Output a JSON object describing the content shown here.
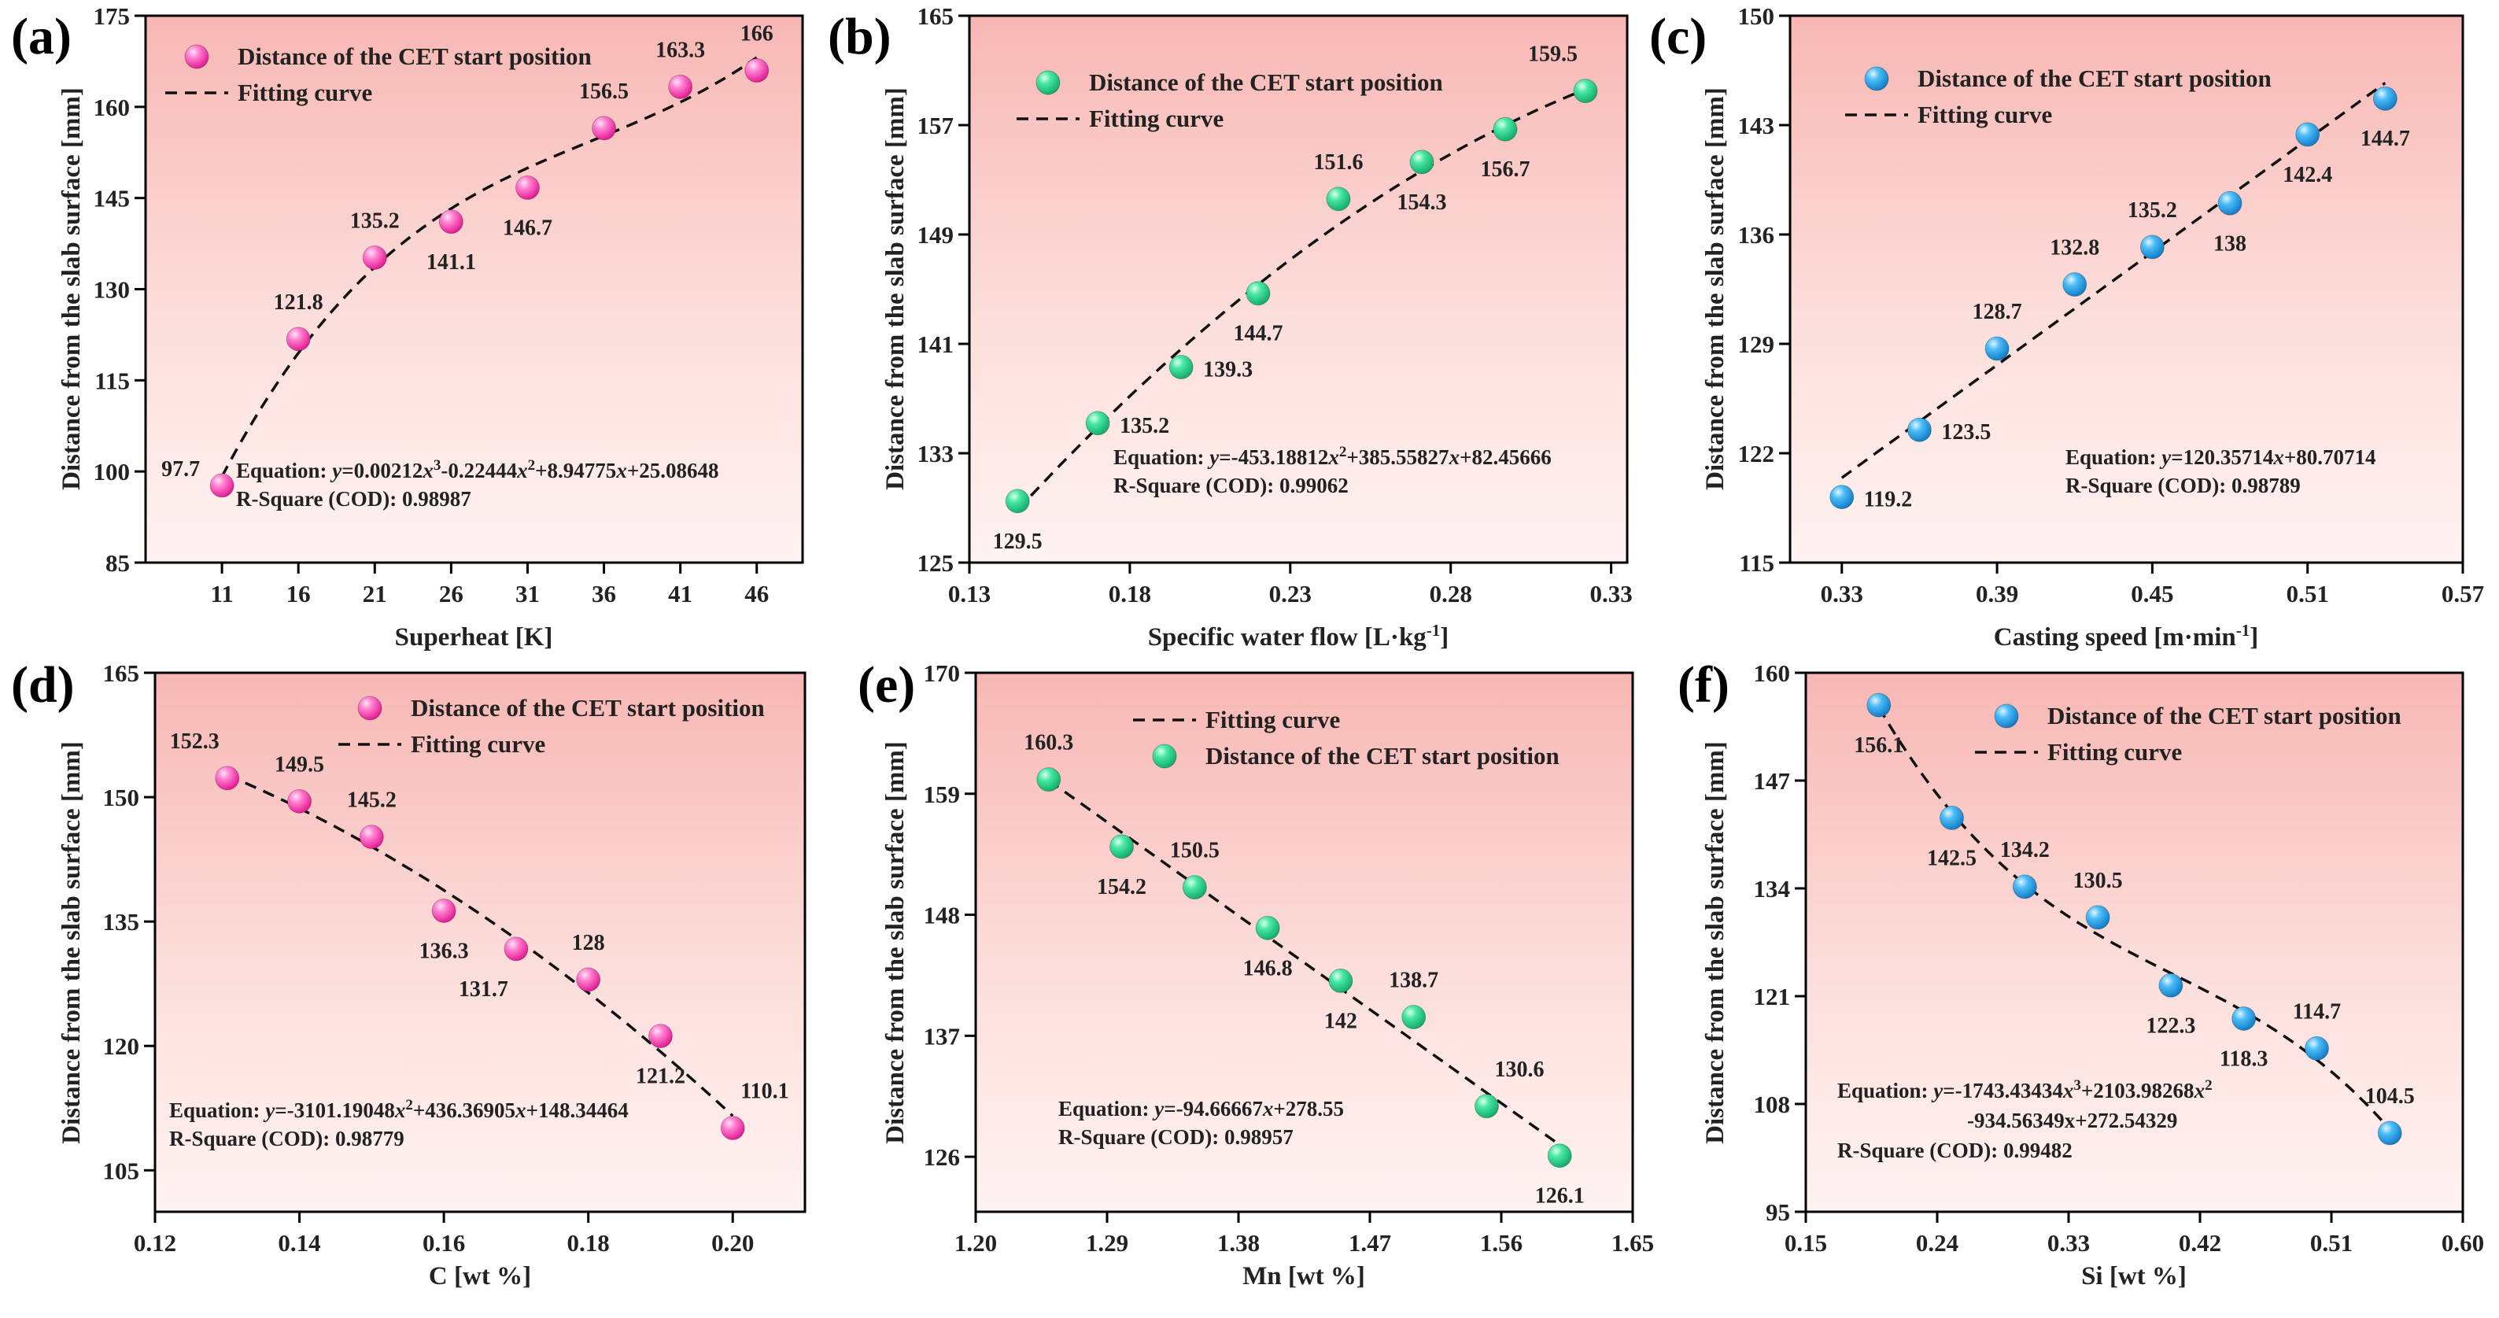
{
  "figure": {
    "ylabel": "Distance from the slab surface [mm]"
  },
  "chart_data": [
    {
      "panel": "(a)",
      "type": "scatter",
      "xlabel": "Superheat [K]",
      "ylabel": "Distance from the slab surface [mm]",
      "xlim": [
        6,
        49
      ],
      "ylim": [
        85,
        175
      ],
      "xticks": [
        11,
        16,
        21,
        26,
        31,
        36,
        41,
        46
      ],
      "xtick_labels": [
        "11",
        "16",
        "21",
        "26",
        "31",
        "36",
        "41",
        "46"
      ],
      "yticks": [
        85,
        100,
        115,
        130,
        145,
        160,
        175
      ],
      "ytick_labels": [
        "85",
        "100",
        "115",
        "130",
        "145",
        "160",
        "175"
      ],
      "marker_color": "#ff3fb4",
      "legend": [
        {
          "kind": "marker",
          "label": "Distance of the CET start position"
        },
        {
          "kind": "line",
          "label": "Fitting curve"
        }
      ],
      "fit": {
        "model": "poly",
        "coef": [
          25.08648,
          8.94775,
          -0.22444,
          0.00212
        ],
        "x_range": [
          11,
          46
        ]
      },
      "points": [
        {
          "x": 11,
          "y": 97.7,
          "label": "97.7",
          "pos": "left"
        },
        {
          "x": 16,
          "y": 121.8,
          "label": "121.8",
          "pos": "above"
        },
        {
          "x": 21,
          "y": 135.2,
          "label": "135.2",
          "pos": "above"
        },
        {
          "x": 26,
          "y": 141.1,
          "label": "141.1",
          "pos": "below"
        },
        {
          "x": 31,
          "y": 146.7,
          "label": "146.7",
          "pos": "below"
        },
        {
          "x": 36,
          "y": 156.5,
          "label": "156.5",
          "pos": "above"
        },
        {
          "x": 41,
          "y": 163.3,
          "label": "163.3",
          "pos": "above"
        },
        {
          "x": 46,
          "y": 166,
          "label": "166",
          "pos": "above"
        }
      ],
      "equation": {
        "line1": {
          "prefix": "Equation: ",
          "parts": [
            [
              "y",
              true,
              false
            ],
            [
              "=0.00212",
              false,
              false
            ],
            [
              "x",
              true,
              false
            ],
            [
              "3",
              false,
              true
            ],
            [
              "-0.22444",
              false,
              false
            ],
            [
              "x",
              true,
              false
            ],
            [
              "2",
              false,
              true
            ],
            [
              "+8.94775",
              false,
              false
            ],
            [
              "x",
              true,
              false
            ],
            [
              "+25.08648",
              false,
              false
            ]
          ]
        },
        "r_square": "R-Square (COD): 0.98987"
      }
    },
    {
      "panel": "(b)",
      "type": "scatter",
      "xlabel": "Specific water flow [L·kg",
      "xlabel_sup": "-1",
      "xlabel_end": "]",
      "ylabel": "Distance from the slab surface [mm]",
      "xlim": [
        0.13,
        0.335
      ],
      "ylim": [
        125,
        165
      ],
      "xticks": [
        0.13,
        0.18,
        0.23,
        0.28,
        0.33
      ],
      "xtick_labels": [
        "0.13",
        "0.18",
        "0.23",
        "0.28",
        "0.33"
      ],
      "yticks": [
        125,
        133,
        141,
        149,
        157,
        165
      ],
      "ytick_labels": [
        "125",
        "133",
        "141",
        "149",
        "157",
        "165"
      ],
      "marker_color": "#1fd88a",
      "legend": [
        {
          "kind": "marker",
          "label": "Distance of the CET start position"
        },
        {
          "kind": "line",
          "label": "Fitting curve"
        }
      ],
      "fit": {
        "model": "poly",
        "coef": [
          82.45666,
          385.55827,
          -453.18812
        ],
        "x_range": [
          0.145,
          0.322
        ]
      },
      "points": [
        {
          "x": 0.145,
          "y": 129.5,
          "label": "129.5",
          "pos": "below"
        },
        {
          "x": 0.17,
          "y": 135.2,
          "label": "135.2",
          "pos": "right"
        },
        {
          "x": 0.196,
          "y": 139.3,
          "label": "139.3",
          "pos": "right"
        },
        {
          "x": 0.22,
          "y": 144.7,
          "label": "144.7",
          "pos": "below"
        },
        {
          "x": 0.245,
          "y": 151.6,
          "label": "151.6",
          "pos": "above"
        },
        {
          "x": 0.271,
          "y": 154.3,
          "label": "154.3",
          "pos": "below"
        },
        {
          "x": 0.297,
          "y": 156.7,
          "label": "156.7",
          "pos": "below"
        },
        {
          "x": 0.322,
          "y": 159.5,
          "label": "159.5",
          "pos": "aboveleft"
        }
      ],
      "equation": {
        "line1": {
          "prefix": "Equation: ",
          "parts": [
            [
              "y",
              true,
              false
            ],
            [
              "=-453.18812",
              false,
              false
            ],
            [
              "x",
              true,
              false
            ],
            [
              "2",
              false,
              true
            ],
            [
              "+385.55827",
              false,
              false
            ],
            [
              "x",
              true,
              false
            ],
            [
              "+82.45666",
              false,
              false
            ]
          ]
        },
        "r_square": "R-Square (COD): 0.99062"
      }
    },
    {
      "panel": "(c)",
      "type": "scatter",
      "xlabel": "Casting speed [m·min",
      "xlabel_sup": "-1",
      "xlabel_end": "]",
      "ylabel": "Distance from the slab surface [mm]",
      "xlim": [
        0.31,
        0.57
      ],
      "ylim": [
        115,
        150
      ],
      "xticks": [
        0.33,
        0.39,
        0.45,
        0.51,
        0.57
      ],
      "xtick_labels": [
        "0.33",
        "0.39",
        "0.45",
        "0.51",
        "0.57"
      ],
      "yticks": [
        115,
        122,
        129,
        136,
        143,
        150
      ],
      "ytick_labels": [
        "115",
        "122",
        "129",
        "136",
        "143",
        "150"
      ],
      "marker_color": "#1fa3f0",
      "legend": [
        {
          "kind": "marker",
          "label": "Distance of the CET start position"
        },
        {
          "kind": "line",
          "label": "Fitting curve"
        }
      ],
      "fit": {
        "model": "poly",
        "coef": [
          80.70714,
          120.35714
        ],
        "x_range": [
          0.33,
          0.54
        ]
      },
      "points": [
        {
          "x": 0.33,
          "y": 119.2,
          "label": "119.2",
          "pos": "right"
        },
        {
          "x": 0.36,
          "y": 123.5,
          "label": "123.5",
          "pos": "right"
        },
        {
          "x": 0.39,
          "y": 128.7,
          "label": "128.7",
          "pos": "above"
        },
        {
          "x": 0.42,
          "y": 132.8,
          "label": "132.8",
          "pos": "above"
        },
        {
          "x": 0.45,
          "y": 135.2,
          "label": "135.2",
          "pos": "above"
        },
        {
          "x": 0.48,
          "y": 138,
          "label": "138",
          "pos": "below"
        },
        {
          "x": 0.51,
          "y": 142.4,
          "label": "142.4",
          "pos": "below"
        },
        {
          "x": 0.54,
          "y": 144.7,
          "label": "144.7",
          "pos": "below"
        }
      ],
      "equation": {
        "line1": {
          "prefix": "Equation: ",
          "parts": [
            [
              "y",
              true,
              false
            ],
            [
              "=120.35714",
              false,
              false
            ],
            [
              "x",
              true,
              false
            ],
            [
              "+80.70714",
              false,
              false
            ]
          ]
        },
        "r_square": "R-Square (COD): 0.98789"
      }
    },
    {
      "panel": "(d)",
      "type": "scatter",
      "xlabel": "C [wt %]",
      "ylabel": "Distance from the slab surface [mm]",
      "xlim": [
        0.12,
        0.21
      ],
      "ylim": [
        100,
        165
      ],
      "xticks": [
        0.12,
        0.14,
        0.16,
        0.18,
        0.2
      ],
      "xtick_labels": [
        "0.12",
        "0.14",
        "0.16",
        "0.18",
        "0.20"
      ],
      "yticks": [
        105,
        120,
        135,
        150,
        165
      ],
      "ytick_labels": [
        "105",
        "120",
        "135",
        "150",
        "165"
      ],
      "marker_color": "#ff3fb4",
      "legend": [
        {
          "kind": "marker",
          "label": "Distance of the CET start position"
        },
        {
          "kind": "line",
          "label": "Fitting curve"
        }
      ],
      "fit": {
        "model": "poly",
        "coef": [
          148.34464,
          436.36905,
          -3101.19048
        ],
        "x_range": [
          0.13,
          0.2
        ]
      },
      "points": [
        {
          "x": 0.13,
          "y": 152.3,
          "label": "152.3",
          "pos": "aboveleft"
        },
        {
          "x": 0.14,
          "y": 149.5,
          "label": "149.5",
          "pos": "above"
        },
        {
          "x": 0.15,
          "y": 145.2,
          "label": "145.2",
          "pos": "above"
        },
        {
          "x": 0.16,
          "y": 136.3,
          "label": "136.3",
          "pos": "below"
        },
        {
          "x": 0.17,
          "y": 131.7,
          "label": "131.7",
          "pos": "belowleft"
        },
        {
          "x": 0.18,
          "y": 128,
          "label": "128",
          "pos": "above"
        },
        {
          "x": 0.19,
          "y": 121.2,
          "label": "121.2",
          "pos": "below"
        },
        {
          "x": 0.2,
          "y": 110.1,
          "label": "110.1",
          "pos": "aboveright"
        }
      ],
      "equation": {
        "line1": {
          "prefix": "Equation: ",
          "parts": [
            [
              "y",
              true,
              false
            ],
            [
              "=-3101.19048",
              false,
              false
            ],
            [
              "x",
              true,
              false
            ],
            [
              "2",
              false,
              true
            ],
            [
              "+436.36905",
              false,
              false
            ],
            [
              "x",
              true,
              false
            ],
            [
              "+148.34464",
              false,
              false
            ]
          ]
        },
        "r_square": "R-Square (COD): 0.98779"
      }
    },
    {
      "panel": "(e)",
      "type": "scatter",
      "xlabel": "Mn [wt %]",
      "ylabel": "Distance from the slab surface [mm]",
      "xlim": [
        1.2,
        1.65
      ],
      "ylim": [
        121,
        170
      ],
      "xticks": [
        1.2,
        1.29,
        1.38,
        1.47,
        1.56,
        1.65
      ],
      "xtick_labels": [
        "1.20",
        "1.29",
        "1.38",
        "1.47",
        "1.56",
        "1.65"
      ],
      "yticks": [
        126,
        137,
        148,
        159,
        170
      ],
      "ytick_labels": [
        "126",
        "137",
        "148",
        "159",
        "170"
      ],
      "marker_color": "#1fd88a",
      "legend": [
        {
          "kind": "line",
          "label": "Fitting curve"
        },
        {
          "kind": "marker",
          "label": "Distance of the CET start position"
        }
      ],
      "fit": {
        "model": "poly",
        "coef": [
          278.55,
          -94.66667
        ],
        "x_range": [
          1.25,
          1.6
        ]
      },
      "points": [
        {
          "x": 1.25,
          "y": 160.3,
          "label": "160.3",
          "pos": "above"
        },
        {
          "x": 1.3,
          "y": 154.2,
          "label": "154.2",
          "pos": "below"
        },
        {
          "x": 1.35,
          "y": 150.5,
          "label": "150.5",
          "pos": "above"
        },
        {
          "x": 1.4,
          "y": 146.8,
          "label": "146.8",
          "pos": "below"
        },
        {
          "x": 1.45,
          "y": 142,
          "label": "142",
          "pos": "below"
        },
        {
          "x": 1.5,
          "y": 138.7,
          "label": "138.7",
          "pos": "above"
        },
        {
          "x": 1.55,
          "y": 130.6,
          "label": "130.6",
          "pos": "aboveright"
        },
        {
          "x": 1.6,
          "y": 126.1,
          "label": "126.1",
          "pos": "below"
        }
      ],
      "equation": {
        "line1": {
          "prefix": "Equation: ",
          "parts": [
            [
              "y",
              true,
              false
            ],
            [
              "=-94.66667",
              false,
              false
            ],
            [
              "x",
              true,
              false
            ],
            [
              "+278.55",
              false,
              false
            ]
          ]
        },
        "r_square": "R-Square (COD): 0.98957"
      }
    },
    {
      "panel": "(f)",
      "type": "scatter",
      "xlabel": "Si [wt %]",
      "ylabel": "Distance from the slab surface [mm]",
      "xlim": [
        0.15,
        0.6
      ],
      "ylim": [
        95,
        160
      ],
      "xticks": [
        0.15,
        0.24,
        0.33,
        0.42,
        0.51,
        0.6
      ],
      "xtick_labels": [
        "0.15",
        "0.24",
        "0.33",
        "0.42",
        "0.51",
        "0.60"
      ],
      "yticks": [
        95,
        108,
        121,
        134,
        147,
        160
      ],
      "ytick_labels": [
        "95",
        "108",
        "121",
        "134",
        "147",
        "160"
      ],
      "marker_color": "#1fa3f0",
      "legend": [
        {
          "kind": "marker",
          "label": "Distance of the CET start position"
        },
        {
          "kind": "line",
          "label": "Fitting curve"
        }
      ],
      "fit": {
        "model": "poly",
        "coef": [
          272.54329,
          -934.56349,
          2103.98268,
          -1743.43434
        ],
        "x_range": [
          0.2,
          0.55
        ]
      },
      "points": [
        {
          "x": 0.2,
          "y": 156.1,
          "label": "156.1",
          "pos": "below"
        },
        {
          "x": 0.25,
          "y": 142.5,
          "label": "142.5",
          "pos": "below"
        },
        {
          "x": 0.3,
          "y": 134.2,
          "label": "134.2",
          "pos": "above"
        },
        {
          "x": 0.35,
          "y": 130.5,
          "label": "130.5",
          "pos": "above"
        },
        {
          "x": 0.4,
          "y": 122.3,
          "label": "122.3",
          "pos": "below"
        },
        {
          "x": 0.45,
          "y": 118.3,
          "label": "118.3",
          "pos": "below"
        },
        {
          "x": 0.5,
          "y": 114.7,
          "label": "114.7",
          "pos": "above"
        },
        {
          "x": 0.55,
          "y": 104.5,
          "label": "104.5",
          "pos": "above"
        }
      ],
      "equation": {
        "line1": {
          "prefix": "Equation: ",
          "parts": [
            [
              "y",
              true,
              false
            ],
            [
              "=-1743.43434",
              false,
              false
            ],
            [
              "x",
              true,
              false
            ],
            [
              "3",
              false,
              true
            ],
            [
              "+2103.98268",
              false,
              false
            ],
            [
              "x",
              true,
              false
            ],
            [
              "2",
              false,
              true
            ]
          ]
        },
        "line2": "-934.56349x+272.54329",
        "r_square": "R-Square (COD): 0.99482"
      }
    }
  ]
}
